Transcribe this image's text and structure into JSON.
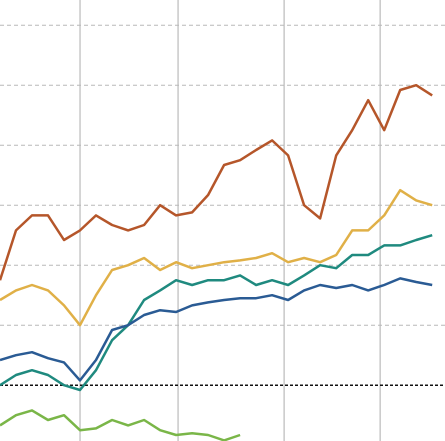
{
  "chart_data": {
    "type": "line",
    "x": [
      0,
      1,
      2,
      3,
      4,
      5,
      6,
      7,
      8,
      9,
      10,
      11,
      12,
      13,
      14,
      15,
      16,
      17,
      18,
      19,
      20,
      21,
      22,
      23,
      24,
      25,
      26,
      27
    ],
    "xlim": [
      0,
      27.8
    ],
    "xticks": [
      5,
      11.125,
      17.75,
      23.75
    ],
    "ylim": [
      -0.93,
      6.42
    ],
    "yticks": [
      0,
      1,
      2,
      3,
      4,
      5,
      6
    ],
    "grid": true,
    "zero_line": true,
    "series": [
      {
        "color": "#b5562a",
        "values": [
          1.75,
          2.58,
          2.83,
          2.83,
          2.42,
          2.58,
          2.83,
          2.67,
          2.58,
          2.67,
          3.0,
          2.83,
          2.88,
          3.17,
          3.67,
          3.75,
          3.92,
          4.08,
          3.83,
          3.0,
          2.78,
          3.83,
          4.25,
          4.75,
          4.25,
          4.92,
          5.0,
          4.83
        ]
      },
      {
        "color": "#e0b047",
        "values": [
          1.42,
          1.58,
          1.67,
          1.58,
          1.33,
          1.0,
          1.5,
          1.92,
          2.0,
          2.12,
          1.92,
          2.05,
          1.95,
          2.0,
          2.05,
          2.08,
          2.12,
          2.2,
          2.05,
          2.12,
          2.05,
          2.17,
          2.58,
          2.58,
          2.83,
          3.25,
          3.08,
          3.0
        ]
      },
      {
        "color": "#1f8a7f",
        "values": [
          0,
          0.17,
          0.25,
          0.17,
          0,
          -0.08,
          0.25,
          0.75,
          1.0,
          1.42,
          1.58,
          1.75,
          1.67,
          1.75,
          1.75,
          1.83,
          1.67,
          1.75,
          1.67,
          1.83,
          2.0,
          1.95,
          2.17,
          2.17,
          2.33,
          2.33,
          2.42,
          2.5
        ]
      },
      {
        "color": "#2a5b94",
        "values": [
          0.42,
          0.5,
          0.55,
          0.45,
          0.38,
          0.08,
          0.42,
          0.92,
          1.0,
          1.17,
          1.25,
          1.22,
          1.33,
          1.38,
          1.42,
          1.45,
          1.45,
          1.5,
          1.42,
          1.58,
          1.67,
          1.62,
          1.67,
          1.58,
          1.67,
          1.78,
          1.72,
          1.67
        ]
      },
      {
        "color": "#7ab648",
        "values": [
          -0.67,
          -0.5,
          -0.42,
          -0.58,
          -0.5,
          -0.75,
          -0.72,
          -0.58,
          -0.67,
          -0.58,
          -0.75,
          -0.83,
          -0.8,
          -0.83,
          -0.92,
          -0.83,
          null,
          null,
          null,
          null,
          null,
          null,
          null,
          null,
          null,
          null,
          null,
          null
        ]
      }
    ]
  }
}
